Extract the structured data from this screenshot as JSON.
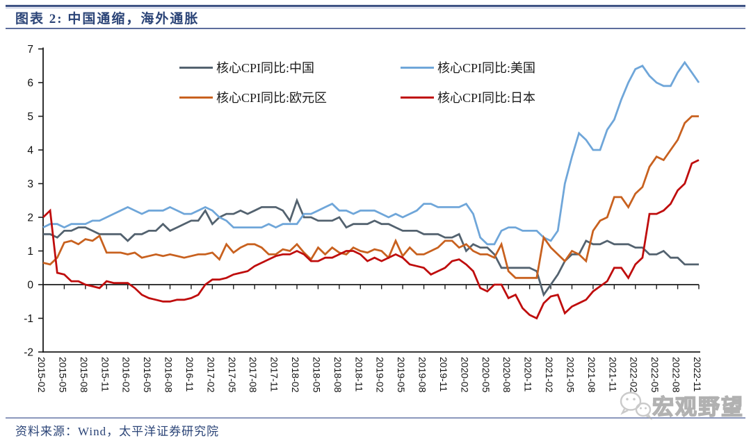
{
  "header": {
    "title": "图表 2: 中国通缩，海外通胀"
  },
  "footer": {
    "source": "资料来源：Wind，太平洋证券研究院"
  },
  "watermark": {
    "text": "宏观野望",
    "icon": "wechat-icon",
    "color": "#adadad"
  },
  "chart_data": {
    "type": "line",
    "title": "图表 2: 中国通缩，海外通胀",
    "xlabel": "",
    "ylabel": "",
    "ylim": [
      -2,
      7
    ],
    "y_ticks": [
      7,
      6,
      5,
      4,
      3,
      2,
      1,
      0,
      -1,
      -2
    ],
    "grid": false,
    "legend_position": "top",
    "axis_color": "#1a1a1a",
    "x_start": "2015-02",
    "x_end": "2022-11",
    "x_frequency": "monthly",
    "months_per_label": 3,
    "x_labels": [
      "2015-02",
      "2015-05",
      "2015-08",
      "2015-11",
      "2016-02",
      "2016-05",
      "2016-08",
      "2016-11",
      "2017-02",
      "2017-05",
      "2017-08",
      "2017-11",
      "2018-02",
      "2018-05",
      "2018-08",
      "2018-11",
      "2019-02",
      "2019-05",
      "2019-08",
      "2019-11",
      "2020-02",
      "2020-05",
      "2020-08",
      "2020-11",
      "2021-02",
      "2021-05",
      "2021-08",
      "2021-11",
      "2022-02",
      "2022-05",
      "2022-08",
      "2022-11"
    ],
    "series": [
      {
        "name": "核心CPI同比:中国",
        "color": "#53626f",
        "values": [
          1.5,
          1.5,
          1.4,
          1.6,
          1.6,
          1.7,
          1.7,
          1.6,
          1.5,
          1.5,
          1.5,
          1.5,
          1.3,
          1.5,
          1.5,
          1.6,
          1.6,
          1.8,
          1.6,
          1.7,
          1.8,
          1.9,
          1.9,
          2.2,
          1.8,
          2.0,
          2.1,
          2.1,
          2.2,
          2.1,
          2.2,
          2.3,
          2.3,
          2.3,
          2.2,
          1.9,
          2.5,
          2.0,
          2.0,
          1.9,
          1.9,
          1.9,
          2.0,
          1.7,
          1.8,
          1.8,
          1.8,
          1.9,
          1.8,
          1.8,
          1.7,
          1.6,
          1.6,
          1.6,
          1.5,
          1.5,
          1.5,
          1.4,
          1.4,
          1.5,
          1.0,
          1.2,
          1.1,
          1.1,
          0.9,
          0.5,
          0.5,
          0.5,
          0.5,
          0.5,
          0.4,
          -0.3,
          0.0,
          0.3,
          0.7,
          0.9,
          0.9,
          1.3,
          1.2,
          1.2,
          1.3,
          1.2,
          1.2,
          1.2,
          1.1,
          1.1,
          0.9,
          0.9,
          1.0,
          0.8,
          0.8,
          0.6,
          0.6,
          0.6
        ]
      },
      {
        "name": "核心CPI同比:美国",
        "color": "#6fa6d9",
        "values": [
          1.7,
          1.8,
          1.8,
          1.7,
          1.8,
          1.8,
          1.8,
          1.9,
          1.9,
          2.0,
          2.1,
          2.2,
          2.3,
          2.2,
          2.1,
          2.2,
          2.2,
          2.2,
          2.3,
          2.2,
          2.1,
          2.1,
          2.2,
          2.3,
          2.2,
          2.0,
          1.9,
          1.7,
          1.7,
          1.7,
          1.7,
          1.7,
          1.8,
          1.7,
          1.8,
          1.8,
          1.8,
          2.1,
          2.1,
          2.2,
          2.3,
          2.4,
          2.2,
          2.2,
          2.1,
          2.2,
          2.2,
          2.2,
          2.1,
          2.0,
          2.1,
          2.0,
          2.1,
          2.2,
          2.4,
          2.4,
          2.3,
          2.3,
          2.3,
          2.3,
          2.4,
          2.1,
          1.4,
          1.2,
          1.2,
          1.6,
          1.7,
          1.7,
          1.6,
          1.6,
          1.6,
          1.4,
          1.3,
          1.6,
          3.0,
          3.8,
          4.5,
          4.3,
          4.0,
          4.0,
          4.6,
          4.9,
          5.5,
          6.0,
          6.4,
          6.5,
          6.2,
          6.0,
          5.9,
          5.9,
          6.3,
          6.6,
          6.3,
          6.0
        ]
      },
      {
        "name": "核心CPI同比:欧元区",
        "color": "#c8611f",
        "values": [
          0.65,
          0.6,
          0.8,
          1.25,
          1.3,
          1.2,
          1.35,
          1.3,
          1.45,
          0.95,
          0.95,
          0.95,
          0.9,
          0.95,
          0.8,
          0.85,
          0.9,
          0.85,
          0.9,
          0.85,
          0.8,
          0.85,
          0.9,
          0.9,
          0.95,
          0.75,
          1.2,
          0.95,
          1.1,
          1.2,
          1.2,
          1.1,
          0.9,
          0.9,
          1.05,
          1.0,
          1.2,
          0.95,
          0.75,
          1.1,
          0.9,
          1.1,
          0.95,
          0.9,
          1.1,
          1.0,
          0.95,
          1.05,
          1.0,
          0.8,
          1.3,
          0.85,
          1.1,
          0.9,
          0.9,
          1.0,
          1.1,
          1.3,
          1.3,
          1.1,
          1.2,
          1.0,
          0.9,
          0.9,
          0.8,
          1.2,
          0.4,
          0.2,
          0.2,
          0.2,
          0.2,
          1.4,
          1.1,
          0.9,
          0.7,
          1.0,
          0.9,
          0.7,
          1.6,
          1.9,
          2.0,
          2.6,
          2.6,
          2.3,
          2.7,
          2.9,
          3.5,
          3.8,
          3.7,
          4.0,
          4.3,
          4.8,
          5.0,
          5.0
        ]
      },
      {
        "name": "核心CPI同比:日本",
        "color": "#bf0d0d",
        "values": [
          2.0,
          2.2,
          0.35,
          0.3,
          0.1,
          0.1,
          0.0,
          -0.05,
          -0.1,
          0.1,
          0.05,
          0.05,
          0.05,
          -0.1,
          -0.3,
          -0.4,
          -0.45,
          -0.5,
          -0.5,
          -0.45,
          -0.45,
          -0.4,
          -0.3,
          0.0,
          0.15,
          0.15,
          0.2,
          0.3,
          0.35,
          0.4,
          0.55,
          0.65,
          0.75,
          0.85,
          0.9,
          0.9,
          1.0,
          0.9,
          0.7,
          0.7,
          0.8,
          0.8,
          0.9,
          1.0,
          1.0,
          0.9,
          0.7,
          0.8,
          0.7,
          0.8,
          0.9,
          0.8,
          0.6,
          0.55,
          0.5,
          0.3,
          0.4,
          0.5,
          0.7,
          0.75,
          0.6,
          0.4,
          -0.1,
          -0.2,
          0.0,
          0.0,
          -0.4,
          -0.3,
          -0.7,
          -0.9,
          -1.0,
          -0.55,
          -0.35,
          -0.3,
          -0.85,
          -0.65,
          -0.55,
          -0.45,
          -0.2,
          -0.05,
          0.1,
          0.5,
          0.5,
          0.2,
          0.6,
          0.8,
          2.1,
          2.1,
          2.2,
          2.4,
          2.8,
          3.0,
          3.6,
          3.7
        ]
      }
    ]
  }
}
